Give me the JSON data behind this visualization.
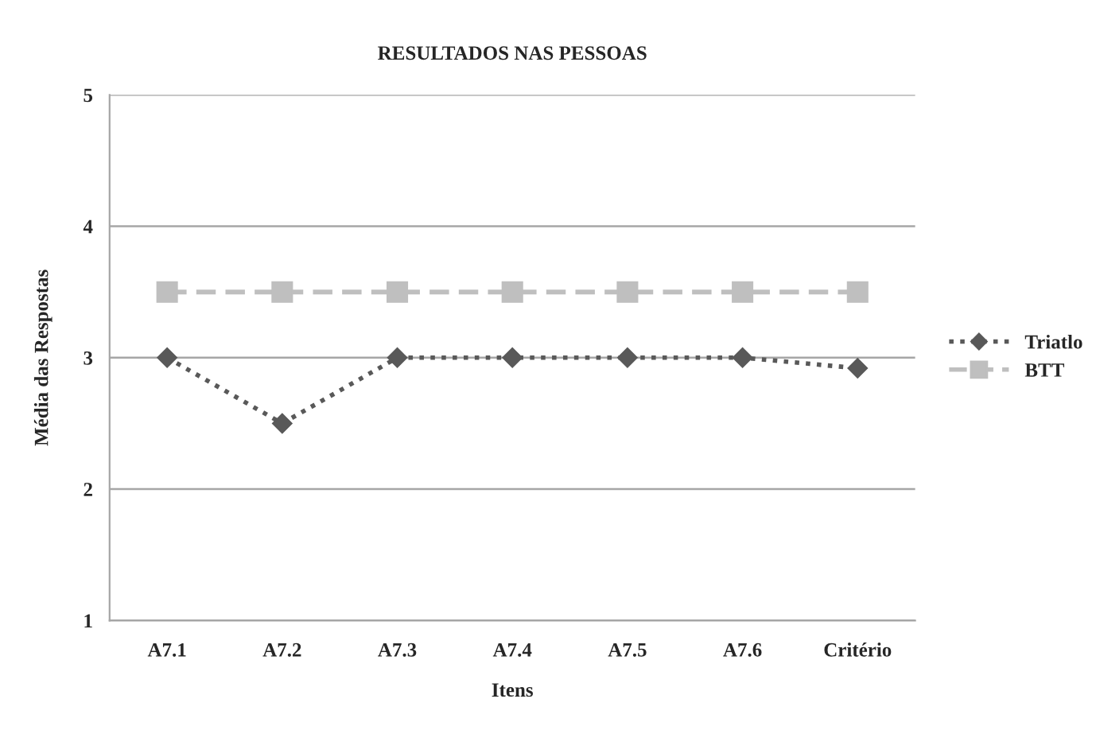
{
  "chart_data": {
    "type": "line",
    "title": "RESULTADOS NAS PESSOAS",
    "xlabel": "Itens",
    "ylabel": "Média das Respostas",
    "categories": [
      "A7.1",
      "A7.2",
      "A7.3",
      "A7.4",
      "A7.5",
      "A7.6",
      "Critério"
    ],
    "series": [
      {
        "name": "Triatlo",
        "color": "#595959",
        "marker": "diamond",
        "line_style": "dotted",
        "values": [
          3,
          2.5,
          3,
          3,
          3,
          3,
          2.92
        ]
      },
      {
        "name": "BTT",
        "color": "#bfbfbf",
        "marker": "square",
        "line_style": "dashed",
        "values": [
          3.5,
          3.5,
          3.5,
          3.5,
          3.5,
          3.5,
          3.5
        ]
      }
    ],
    "ylim": [
      1,
      5
    ],
    "yticks": [
      1,
      2,
      3,
      4,
      5
    ],
    "grid": "y",
    "legend": "right"
  }
}
